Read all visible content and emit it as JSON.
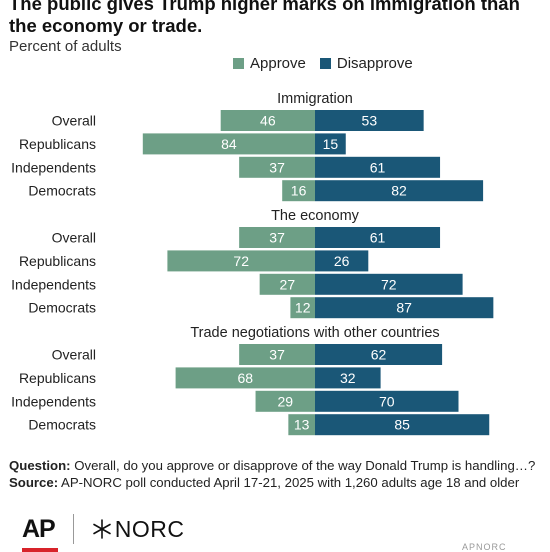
{
  "title": "The public gives Trump higher marks on immigration than the economy or trade.",
  "subtitle": "Percent of adults",
  "legend": {
    "approve": "Approve",
    "disapprove": "Disapprove"
  },
  "colors": {
    "approve": "#6d9f86",
    "disapprove": "#1a5777"
  },
  "chart_data": {
    "type": "bar",
    "orientation": "diverging-horizontal",
    "legend_position": "top",
    "grid": false,
    "categories": [
      "Overall",
      "Republicans",
      "Independents",
      "Democrats"
    ],
    "groups": [
      {
        "label": "Immigration",
        "approve": [
          46,
          84,
          37,
          16
        ],
        "disapprove": [
          53,
          15,
          61,
          82
        ]
      },
      {
        "label": "The economy",
        "approve": [
          37,
          72,
          27,
          12
        ],
        "disapprove": [
          61,
          26,
          72,
          87
        ]
      },
      {
        "label": "Trade negotiations with other countries",
        "approve": [
          37,
          68,
          29,
          13
        ],
        "disapprove": [
          62,
          32,
          70,
          85
        ]
      }
    ],
    "series": [
      {
        "name": "Approve",
        "color": "#6d9f86"
      },
      {
        "name": "Disapprove",
        "color": "#1a5777"
      }
    ]
  },
  "footer": {
    "question_label": "Question:",
    "question_text": "Overall, do you approve or disapprove of the way Donald Trump is handling…?",
    "source_label": "Source:",
    "source_text": "AP-NORC poll conducted April 17-21, 2025 with 1,260 adults age 18 and older"
  },
  "logos": {
    "ap": "AP",
    "norc": "NORC"
  },
  "credit": "APNORC"
}
